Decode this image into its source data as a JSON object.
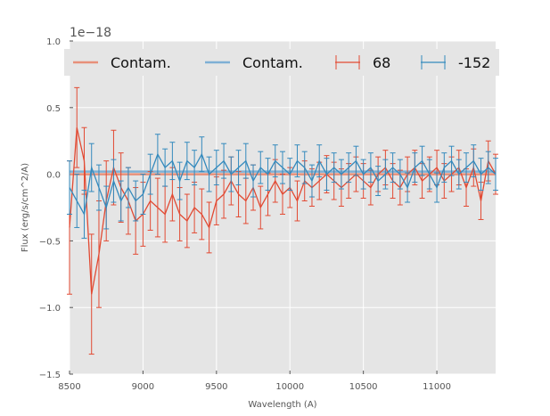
{
  "chart_data": {
    "type": "line",
    "xlabel": "Wavelength (A)",
    "ylabel": "Flux (erg/s/cm^2/A)",
    "y_offset_label": "1e−18",
    "y_scale_exponent": -18,
    "xlim": [
      8500,
      11400
    ],
    "ylim": [
      -1.5,
      1.0
    ],
    "x_ticks": [
      8500,
      9000,
      9500,
      10000,
      10500,
      11000
    ],
    "x_tick_labels": [
      "8500",
      "9000",
      "9500",
      "10000",
      "10500",
      "11000"
    ],
    "y_ticks": [
      -1.5,
      -1.0,
      -0.5,
      0.0,
      0.5,
      1.0
    ],
    "y_tick_labels": [
      "−1.5",
      "−1.0",
      "−0.5",
      "0.0",
      "0.5",
      "1.0"
    ],
    "grid": true,
    "legend_position": "top",
    "legend": [
      {
        "label": "Contam.",
        "kind": "line",
        "color": "#E8907A"
      },
      {
        "label": "Contam.",
        "kind": "line",
        "color": "#7EB0D5"
      },
      {
        "label": "68",
        "kind": "errorbar",
        "color": "#E24A33"
      },
      {
        "label": "-152",
        "kind": "errorbar",
        "color": "#348ABD"
      }
    ],
    "series": [
      {
        "name": "68",
        "color": "#E24A33",
        "kind": "errorbar",
        "x": [
          8500,
          8550,
          8600,
          8650,
          8700,
          8750,
          8800,
          8850,
          8900,
          8950,
          9000,
          9050,
          9100,
          9150,
          9200,
          9250,
          9300,
          9350,
          9400,
          9450,
          9500,
          9550,
          9600,
          9650,
          9700,
          9750,
          9800,
          9850,
          9900,
          9950,
          10000,
          10050,
          10100,
          10150,
          10200,
          10250,
          10300,
          10350,
          10400,
          10450,
          10500,
          10550,
          10600,
          10650,
          10700,
          10750,
          10800,
          10850,
          10900,
          10950,
          11000,
          11050,
          11100,
          11150,
          11200,
          11250,
          11300,
          11350,
          11400
        ],
        "y": [
          -0.4,
          0.35,
          0.1,
          -0.9,
          -0.6,
          -0.2,
          0.05,
          -0.1,
          -0.2,
          -0.35,
          -0.3,
          -0.2,
          -0.25,
          -0.3,
          -0.15,
          -0.3,
          -0.35,
          -0.25,
          -0.3,
          -0.4,
          -0.2,
          -0.15,
          -0.05,
          -0.15,
          -0.2,
          -0.1,
          -0.25,
          -0.15,
          -0.05,
          -0.15,
          -0.1,
          -0.2,
          -0.05,
          -0.1,
          -0.05,
          0.0,
          -0.05,
          -0.1,
          -0.05,
          0.0,
          -0.05,
          -0.1,
          0.0,
          0.05,
          -0.05,
          -0.1,
          0.0,
          0.05,
          -0.05,
          0.0,
          0.05,
          -0.05,
          0.0,
          0.05,
          -0.1,
          0.05,
          -0.2,
          0.1,
          0.0
        ],
        "yerr": [
          0.5,
          0.3,
          0.25,
          0.45,
          0.4,
          0.3,
          0.28,
          0.26,
          0.25,
          0.25,
          0.24,
          0.22,
          0.22,
          0.21,
          0.2,
          0.2,
          0.2,
          0.19,
          0.19,
          0.19,
          0.18,
          0.18,
          0.18,
          0.17,
          0.17,
          0.17,
          0.16,
          0.16,
          0.16,
          0.15,
          0.15,
          0.15,
          0.15,
          0.14,
          0.14,
          0.14,
          0.14,
          0.14,
          0.13,
          0.13,
          0.13,
          0.13,
          0.13,
          0.13,
          0.13,
          0.13,
          0.13,
          0.13,
          0.13,
          0.13,
          0.13,
          0.13,
          0.13,
          0.13,
          0.14,
          0.14,
          0.14,
          0.15,
          0.15
        ]
      },
      {
        "name": "-152",
        "color": "#348ABD",
        "kind": "errorbar",
        "x": [
          8500,
          8550,
          8600,
          8650,
          8700,
          8750,
          8800,
          8850,
          8900,
          8950,
          9000,
          9050,
          9100,
          9150,
          9200,
          9250,
          9300,
          9350,
          9400,
          9450,
          9500,
          9550,
          9600,
          9650,
          9700,
          9750,
          9800,
          9850,
          9900,
          9950,
          10000,
          10050,
          10100,
          10150,
          10200,
          10250,
          10300,
          10350,
          10400,
          10450,
          10500,
          10550,
          10600,
          10650,
          10700,
          10750,
          10800,
          10850,
          10900,
          10950,
          11000,
          11050,
          11100,
          11150,
          11200,
          11250,
          11300,
          11350,
          11400
        ],
        "y": [
          -0.1,
          -0.2,
          -0.3,
          0.05,
          -0.1,
          -0.25,
          -0.05,
          -0.2,
          -0.1,
          -0.2,
          -0.15,
          0.0,
          0.15,
          0.05,
          0.1,
          -0.05,
          0.1,
          0.05,
          0.15,
          0.0,
          0.05,
          0.1,
          0.0,
          0.05,
          0.1,
          -0.05,
          0.05,
          0.0,
          0.1,
          0.05,
          0.0,
          0.1,
          0.05,
          -0.05,
          0.1,
          0.0,
          0.05,
          0.0,
          0.05,
          0.1,
          0.0,
          0.05,
          -0.05,
          0.0,
          0.05,
          0.0,
          -0.1,
          0.05,
          0.1,
          0.0,
          -0.1,
          0.05,
          0.1,
          0.0,
          0.05,
          0.1,
          0.0,
          0.05,
          0.0
        ],
        "yerr": [
          0.2,
          0.2,
          0.18,
          0.18,
          0.17,
          0.16,
          0.16,
          0.15,
          0.15,
          0.15,
          0.15,
          0.15,
          0.15,
          0.14,
          0.14,
          0.14,
          0.14,
          0.13,
          0.13,
          0.13,
          0.13,
          0.13,
          0.13,
          0.13,
          0.13,
          0.12,
          0.12,
          0.12,
          0.12,
          0.12,
          0.12,
          0.12,
          0.12,
          0.12,
          0.12,
          0.12,
          0.11,
          0.11,
          0.11,
          0.11,
          0.11,
          0.11,
          0.11,
          0.11,
          0.11,
          0.11,
          0.11,
          0.11,
          0.11,
          0.11,
          0.11,
          0.11,
          0.11,
          0.11,
          0.11,
          0.12,
          0.12,
          0.12,
          0.12
        ]
      },
      {
        "name": "Contam.",
        "color": "#E8907A",
        "kind": "line",
        "x": [
          8500,
          11400
        ],
        "y": [
          0.0,
          0.0
        ]
      },
      {
        "name": "Contam.",
        "color": "#7EB0D5",
        "kind": "line",
        "x": [
          8500,
          11400
        ],
        "y": [
          0.02,
          0.02
        ]
      }
    ]
  }
}
